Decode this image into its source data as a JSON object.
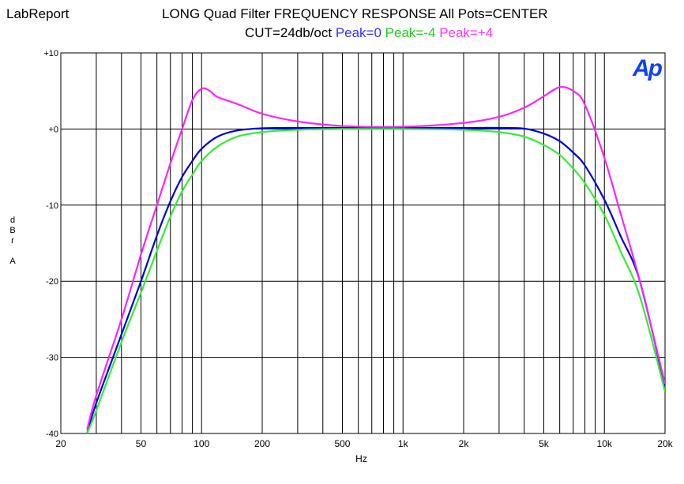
{
  "app_label": "LabReport",
  "title": "LONG Quad Filter FREQUENCY RESPONSE  All Pots=CENTER",
  "subtitle": {
    "prefix": "CUT=24db/oct ",
    "parts": [
      {
        "text": "Peak=0 ",
        "color": "#3333ff"
      },
      {
        "text": "Peak=-4 ",
        "color": "#22cc22"
      },
      {
        "text": "Peak=+4",
        "color": "#ff33ff"
      }
    ]
  },
  "logo": {
    "text": "Ap",
    "color": "#1040ff"
  },
  "chart_data": {
    "type": "line",
    "xlabel": "Hz",
    "ylabel": "dBr A",
    "xscale": "log",
    "xlim": [
      20,
      20000
    ],
    "ylim": [
      -40,
      10
    ],
    "grid": true,
    "x_ticks": [
      {
        "value": 20,
        "label": "20"
      },
      {
        "value": 50,
        "label": "50"
      },
      {
        "value": 100,
        "label": "100"
      },
      {
        "value": 200,
        "label": "200"
      },
      {
        "value": 500,
        "label": "500"
      },
      {
        "value": 1000,
        "label": "1k"
      },
      {
        "value": 2000,
        "label": "2k"
      },
      {
        "value": 5000,
        "label": "5k"
      },
      {
        "value": 10000,
        "label": "10k"
      },
      {
        "value": 20000,
        "label": "20k"
      }
    ],
    "y_ticks": [
      {
        "value": 10,
        "label": "+10"
      },
      {
        "value": 0,
        "label": "+0"
      },
      {
        "value": -10,
        "label": "-10"
      },
      {
        "value": -20,
        "label": "-20"
      },
      {
        "value": -30,
        "label": "-30"
      },
      {
        "value": -40,
        "label": "-40"
      }
    ],
    "series": [
      {
        "name": "Peak=0",
        "color": "#0000dd",
        "x": [
          27,
          30,
          40,
          50,
          60,
          70,
          80,
          90,
          100,
          120,
          150,
          200,
          300,
          500,
          1000,
          2000,
          3000,
          4000,
          5000,
          6000,
          7000,
          8000,
          10000,
          12000,
          15000,
          20000
        ],
        "y": [
          -40,
          -36,
          -27,
          -20,
          -14,
          -9.5,
          -6.3,
          -4.2,
          -2.6,
          -1.0,
          -0.2,
          0.1,
          0.15,
          0.15,
          0.15,
          0.15,
          0.15,
          0.05,
          -0.6,
          -1.6,
          -3.1,
          -4.8,
          -9.3,
          -14,
          -20,
          -34
        ]
      },
      {
        "name": "Peak=-4",
        "color": "#33ee33",
        "x": [
          27,
          30,
          40,
          50,
          60,
          70,
          80,
          90,
          100,
          120,
          150,
          200,
          300,
          500,
          1000,
          2000,
          3000,
          4000,
          5000,
          6000,
          7000,
          8000,
          10000,
          12000,
          15000,
          20000
        ],
        "y": [
          -40,
          -37,
          -28,
          -21.5,
          -16,
          -11.5,
          -8.2,
          -6,
          -4.2,
          -2.3,
          -1.0,
          -0.4,
          -0.1,
          0,
          0,
          -0.1,
          -0.4,
          -1.0,
          -2.1,
          -3.4,
          -5.2,
          -7.1,
          -11.3,
          -16,
          -22,
          -34.5
        ]
      },
      {
        "name": "Peak=+4",
        "color": "#ff22ff",
        "x": [
          27,
          30,
          40,
          50,
          60,
          70,
          80,
          90,
          100,
          110,
          120,
          150,
          200,
          300,
          500,
          1000,
          2000,
          3000,
          4000,
          5000,
          6000,
          7000,
          8000,
          10000,
          12000,
          15000,
          20000
        ],
        "y": [
          -39.5,
          -35,
          -25,
          -16.5,
          -10,
          -4.5,
          0,
          3.8,
          5.3,
          5.0,
          4.2,
          3.3,
          2.0,
          1.0,
          0.4,
          0.3,
          0.8,
          1.6,
          2.8,
          4.3,
          5.5,
          5.0,
          3.2,
          -3.8,
          -11,
          -20,
          -33.5
        ]
      }
    ]
  }
}
